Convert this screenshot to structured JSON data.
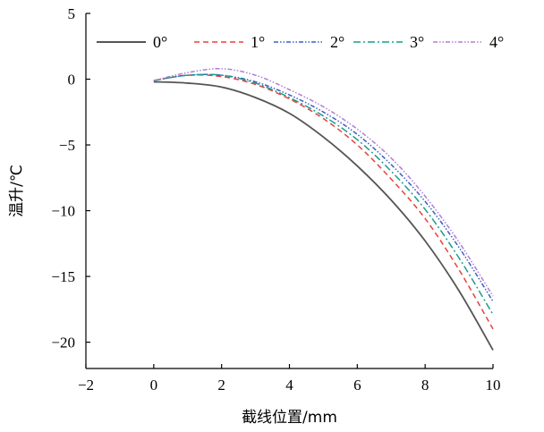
{
  "chart_data": {
    "type": "line",
    "xlabel": "截线位置/mm",
    "ylabel": "温升/℃",
    "xlim": [
      -2,
      10
    ],
    "ylim": [
      -22,
      5
    ],
    "xticks": [
      "−2",
      "0",
      "2",
      "4",
      "6",
      "8",
      "10"
    ],
    "yticks": [
      "−20",
      "−15",
      "−10",
      "−5",
      "0",
      "5"
    ],
    "xtick_values": [
      -2,
      0,
      2,
      4,
      6,
      8,
      10
    ],
    "ytick_values": [
      -20,
      -15,
      -10,
      -5,
      0,
      5
    ],
    "grid": false,
    "legend_position": "top",
    "series": [
      {
        "name": "0°",
        "color": "#555555",
        "dash": "solid",
        "points": [
          [
            0.0,
            -0.2
          ],
          [
            1.0,
            -0.3
          ],
          [
            2.0,
            -0.6
          ],
          [
            3.0,
            -1.4
          ],
          [
            4.0,
            -2.6
          ],
          [
            5.0,
            -4.4
          ],
          [
            6.0,
            -6.6
          ],
          [
            7.0,
            -9.2
          ],
          [
            8.0,
            -12.3
          ],
          [
            9.0,
            -16.1
          ],
          [
            10.0,
            -20.6
          ]
        ]
      },
      {
        "name": "1°",
        "color": "#e8413c",
        "dash": "dashed",
        "points": [
          [
            0.0,
            -0.1
          ],
          [
            1.0,
            0.3
          ],
          [
            2.0,
            0.2
          ],
          [
            3.0,
            -0.4
          ],
          [
            4.0,
            -1.5
          ],
          [
            5.0,
            -3.0
          ],
          [
            6.0,
            -5.0
          ],
          [
            7.0,
            -7.6
          ],
          [
            8.0,
            -10.6
          ],
          [
            9.0,
            -14.5
          ],
          [
            10.0,
            -19.0
          ]
        ]
      },
      {
        "name": "2°",
        "color": "#3b5fc7",
        "dash": "dashdotdot",
        "points": [
          [
            0.0,
            -0.1
          ],
          [
            1.0,
            0.3
          ],
          [
            2.0,
            0.3
          ],
          [
            3.0,
            -0.2
          ],
          [
            4.0,
            -1.2
          ],
          [
            5.0,
            -2.5
          ],
          [
            6.0,
            -4.2
          ],
          [
            7.0,
            -6.5
          ],
          [
            8.0,
            -9.3
          ],
          [
            9.0,
            -12.8
          ],
          [
            10.0,
            -16.9
          ]
        ]
      },
      {
        "name": "3°",
        "color": "#1a9e8a",
        "dash": "dashdot",
        "points": [
          [
            0.0,
            -0.1
          ],
          [
            1.0,
            0.3
          ],
          [
            2.0,
            0.3
          ],
          [
            3.0,
            -0.3
          ],
          [
            4.0,
            -1.4
          ],
          [
            5.0,
            -2.8
          ],
          [
            6.0,
            -4.6
          ],
          [
            7.0,
            -7.0
          ],
          [
            8.0,
            -9.9
          ],
          [
            9.0,
            -13.6
          ],
          [
            10.0,
            -17.9
          ]
        ]
      },
      {
        "name": "4°",
        "color": "#b07fd4",
        "dash": "dashdotdot",
        "points": [
          [
            0.0,
            -0.1
          ],
          [
            1.0,
            0.5
          ],
          [
            2.0,
            0.8
          ],
          [
            3.0,
            0.3
          ],
          [
            4.0,
            -0.8
          ],
          [
            5.0,
            -2.1
          ],
          [
            6.0,
            -3.8
          ],
          [
            7.0,
            -6.0
          ],
          [
            8.0,
            -8.9
          ],
          [
            9.0,
            -12.4
          ],
          [
            10.0,
            -16.5
          ]
        ]
      }
    ]
  }
}
